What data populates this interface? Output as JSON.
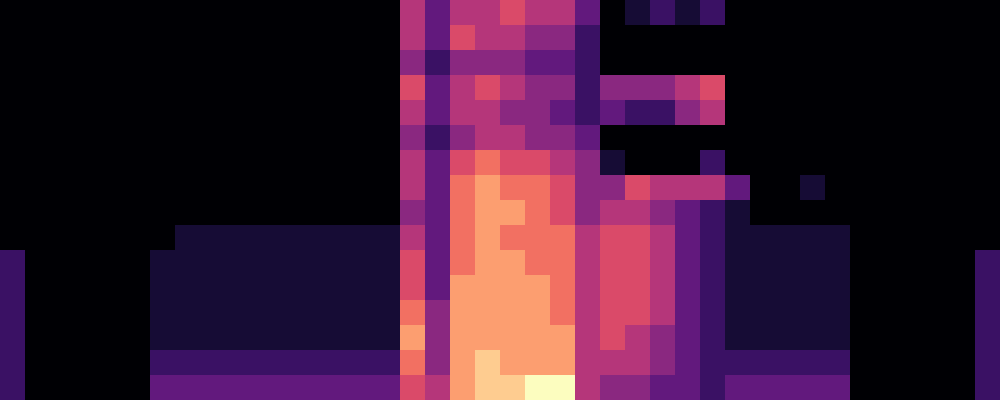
{
  "chart_data": {
    "type": "heatmap",
    "tick_labels": false,
    "grid": false,
    "color_range": [
      0,
      10
    ],
    "cells": [
      [
        0,
        0,
        0,
        0,
        0,
        0,
        0,
        0,
        0,
        0,
        0,
        0,
        0,
        0,
        0,
        0,
        5,
        3,
        5,
        5,
        6,
        5,
        5,
        3,
        0,
        1,
        2,
        1,
        2,
        0,
        0,
        0,
        0,
        0,
        0,
        0,
        0,
        0,
        0,
        0
      ],
      [
        0,
        0,
        0,
        0,
        0,
        0,
        0,
        0,
        0,
        0,
        0,
        0,
        0,
        0,
        0,
        0,
        5,
        3,
        6,
        5,
        5,
        4,
        4,
        2,
        0,
        0,
        0,
        0,
        0,
        0,
        0,
        0,
        0,
        0,
        0,
        0,
        0,
        0,
        0,
        0
      ],
      [
        0,
        0,
        0,
        0,
        0,
        0,
        0,
        0,
        0,
        0,
        0,
        0,
        0,
        0,
        0,
        0,
        4,
        2,
        4,
        4,
        4,
        3,
        3,
        2,
        0,
        0,
        0,
        0,
        0,
        0,
        0,
        0,
        0,
        0,
        0,
        0,
        0,
        0,
        0,
        0
      ],
      [
        0,
        0,
        0,
        0,
        0,
        0,
        0,
        0,
        0,
        0,
        0,
        0,
        0,
        0,
        0,
        0,
        6,
        3,
        5,
        6,
        5,
        4,
        4,
        2,
        4,
        4,
        4,
        5,
        6,
        0,
        0,
        0,
        0,
        0,
        0,
        0,
        0,
        0,
        0,
        0
      ],
      [
        0,
        0,
        0,
        0,
        0,
        0,
        0,
        0,
        0,
        0,
        0,
        0,
        0,
        0,
        0,
        0,
        5,
        3,
        5,
        5,
        4,
        4,
        3,
        2,
        3,
        2,
        2,
        4,
        5,
        0,
        0,
        0,
        0,
        0,
        0,
        0,
        0,
        0,
        0,
        0
      ],
      [
        0,
        0,
        0,
        0,
        0,
        0,
        0,
        0,
        0,
        0,
        0,
        0,
        0,
        0,
        0,
        0,
        4,
        2,
        4,
        5,
        5,
        4,
        4,
        3,
        0,
        0,
        0,
        0,
        0,
        0,
        0,
        0,
        0,
        0,
        0,
        0,
        0,
        0,
        0,
        0
      ],
      [
        0,
        0,
        0,
        0,
        0,
        0,
        0,
        0,
        0,
        0,
        0,
        0,
        0,
        0,
        0,
        0,
        5,
        3,
        6,
        7,
        6,
        6,
        5,
        4,
        1,
        0,
        0,
        0,
        2,
        0,
        0,
        0,
        0,
        0,
        0,
        0,
        0,
        0,
        0,
        0
      ],
      [
        0,
        0,
        0,
        0,
        0,
        0,
        0,
        0,
        0,
        0,
        0,
        0,
        0,
        0,
        0,
        0,
        5,
        3,
        7,
        8,
        7,
        7,
        6,
        4,
        4,
        6,
        5,
        5,
        5,
        3,
        0,
        0,
        1,
        0,
        0,
        0,
        0,
        0,
        0,
        0
      ],
      [
        0,
        0,
        0,
        0,
        0,
        0,
        0,
        0,
        0,
        0,
        0,
        0,
        0,
        0,
        0,
        0,
        4,
        3,
        7,
        8,
        8,
        7,
        6,
        4,
        5,
        5,
        4,
        3,
        2,
        1,
        0,
        0,
        0,
        0,
        0,
        0,
        0,
        0,
        0,
        0
      ],
      [
        0,
        0,
        0,
        0,
        0,
        0,
        0,
        1,
        1,
        1,
        1,
        1,
        1,
        1,
        1,
        1,
        5,
        3,
        7,
        8,
        7,
        7,
        7,
        5,
        6,
        6,
        5,
        3,
        2,
        1,
        1,
        1,
        1,
        1,
        0,
        0,
        0,
        0,
        0,
        0
      ],
      [
        2,
        0,
        0,
        0,
        0,
        0,
        1,
        1,
        1,
        1,
        1,
        1,
        1,
        1,
        1,
        1,
        6,
        3,
        7,
        8,
        8,
        7,
        7,
        5,
        6,
        6,
        5,
        3,
        2,
        1,
        1,
        1,
        1,
        1,
        0,
        0,
        0,
        0,
        0,
        2
      ],
      [
        2,
        0,
        0,
        0,
        0,
        0,
        1,
        1,
        1,
        1,
        1,
        1,
        1,
        1,
        1,
        1,
        6,
        3,
        8,
        8,
        8,
        8,
        7,
        5,
        6,
        6,
        5,
        3,
        2,
        1,
        1,
        1,
        1,
        1,
        0,
        0,
        0,
        0,
        0,
        2
      ],
      [
        2,
        0,
        0,
        0,
        0,
        0,
        1,
        1,
        1,
        1,
        1,
        1,
        1,
        1,
        1,
        1,
        7,
        4,
        8,
        8,
        8,
        8,
        7,
        5,
        6,
        6,
        5,
        3,
        2,
        1,
        1,
        1,
        1,
        1,
        0,
        0,
        0,
        0,
        0,
        2
      ],
      [
        2,
        0,
        0,
        0,
        0,
        0,
        1,
        1,
        1,
        1,
        1,
        1,
        1,
        1,
        1,
        1,
        8,
        4,
        8,
        8,
        8,
        8,
        8,
        5,
        6,
        5,
        4,
        3,
        2,
        1,
        1,
        1,
        1,
        1,
        0,
        0,
        0,
        0,
        0,
        2
      ],
      [
        2,
        0,
        0,
        0,
        0,
        0,
        2,
        2,
        2,
        2,
        2,
        2,
        2,
        2,
        2,
        2,
        7,
        4,
        8,
        9,
        8,
        8,
        8,
        5,
        5,
        5,
        4,
        3,
        2,
        2,
        2,
        2,
        2,
        2,
        0,
        0,
        0,
        0,
        0,
        2
      ],
      [
        2,
        0,
        0,
        0,
        0,
        0,
        3,
        3,
        3,
        3,
        3,
        3,
        3,
        3,
        3,
        3,
        6,
        5,
        8,
        9,
        9,
        10,
        10,
        5,
        4,
        4,
        3,
        3,
        2,
        3,
        3,
        3,
        3,
        3,
        0,
        0,
        0,
        0,
        0,
        2
      ]
    ]
  }
}
